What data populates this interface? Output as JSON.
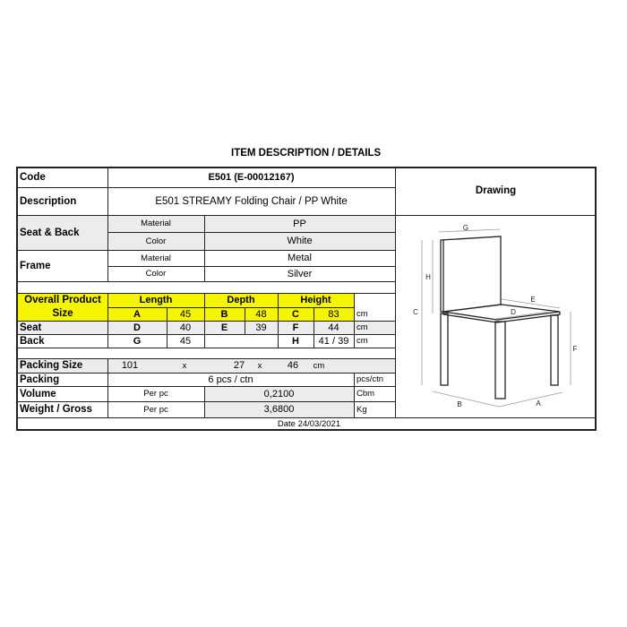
{
  "title": "ITEM DESCRIPTION / DETAILS",
  "code": {
    "label": "Code",
    "value": "E501 (E-00012167)"
  },
  "description": {
    "label": "Description",
    "value": "E501 STREAMY Folding Chair / PP White"
  },
  "seat_back": {
    "label": "Seat & Back",
    "material_label": "Material",
    "material": "PP",
    "color_label": "Color",
    "color": "White"
  },
  "frame": {
    "label": "Frame",
    "material_label": "Material",
    "material": "Metal",
    "color_label": "Color",
    "color": "Silver"
  },
  "size": {
    "label": "Overall Product Size",
    "length_label": "Length",
    "depth_label": "Depth",
    "height_label": "Height",
    "overall": {
      "a": "A",
      "a_val": "45",
      "b": "B",
      "b_val": "48",
      "c": "C",
      "c_val": "83",
      "unit": "cm"
    },
    "seat": {
      "label": "Seat",
      "d": "D",
      "d_val": "40",
      "e": "E",
      "e_val": "39",
      "f": "F",
      "f_val": "44",
      "unit": "cm"
    },
    "back": {
      "label": "Back",
      "g": "G",
      "g_val": "45",
      "h": "H",
      "h_val": "41 / 39",
      "unit": "cm"
    }
  },
  "packing_size": {
    "label": "Packing Size",
    "l": "101",
    "x1": "x",
    "w": "27",
    "x2": "x",
    "h": "46",
    "unit": "cm"
  },
  "packing": {
    "label": "Packing",
    "value": "6 pcs / ctn",
    "unit": "pcs/ctn"
  },
  "volume": {
    "label": "Volume",
    "per": "Per pc",
    "value": "0,2100",
    "unit": "Cbm"
  },
  "weight": {
    "label": "Weight / Gross",
    "per": "Per pc",
    "value": "3,6800",
    "unit": "Kg"
  },
  "date": "Date 24/03/2021",
  "drawing": {
    "label": "Drawing",
    "dims": {
      "a": "A",
      "b": "B",
      "c": "C",
      "d": "D",
      "e": "E",
      "f": "F",
      "g": "G",
      "h": "H"
    }
  },
  "colors": {
    "highlight": "#f5f500",
    "shade": "#ececec"
  }
}
